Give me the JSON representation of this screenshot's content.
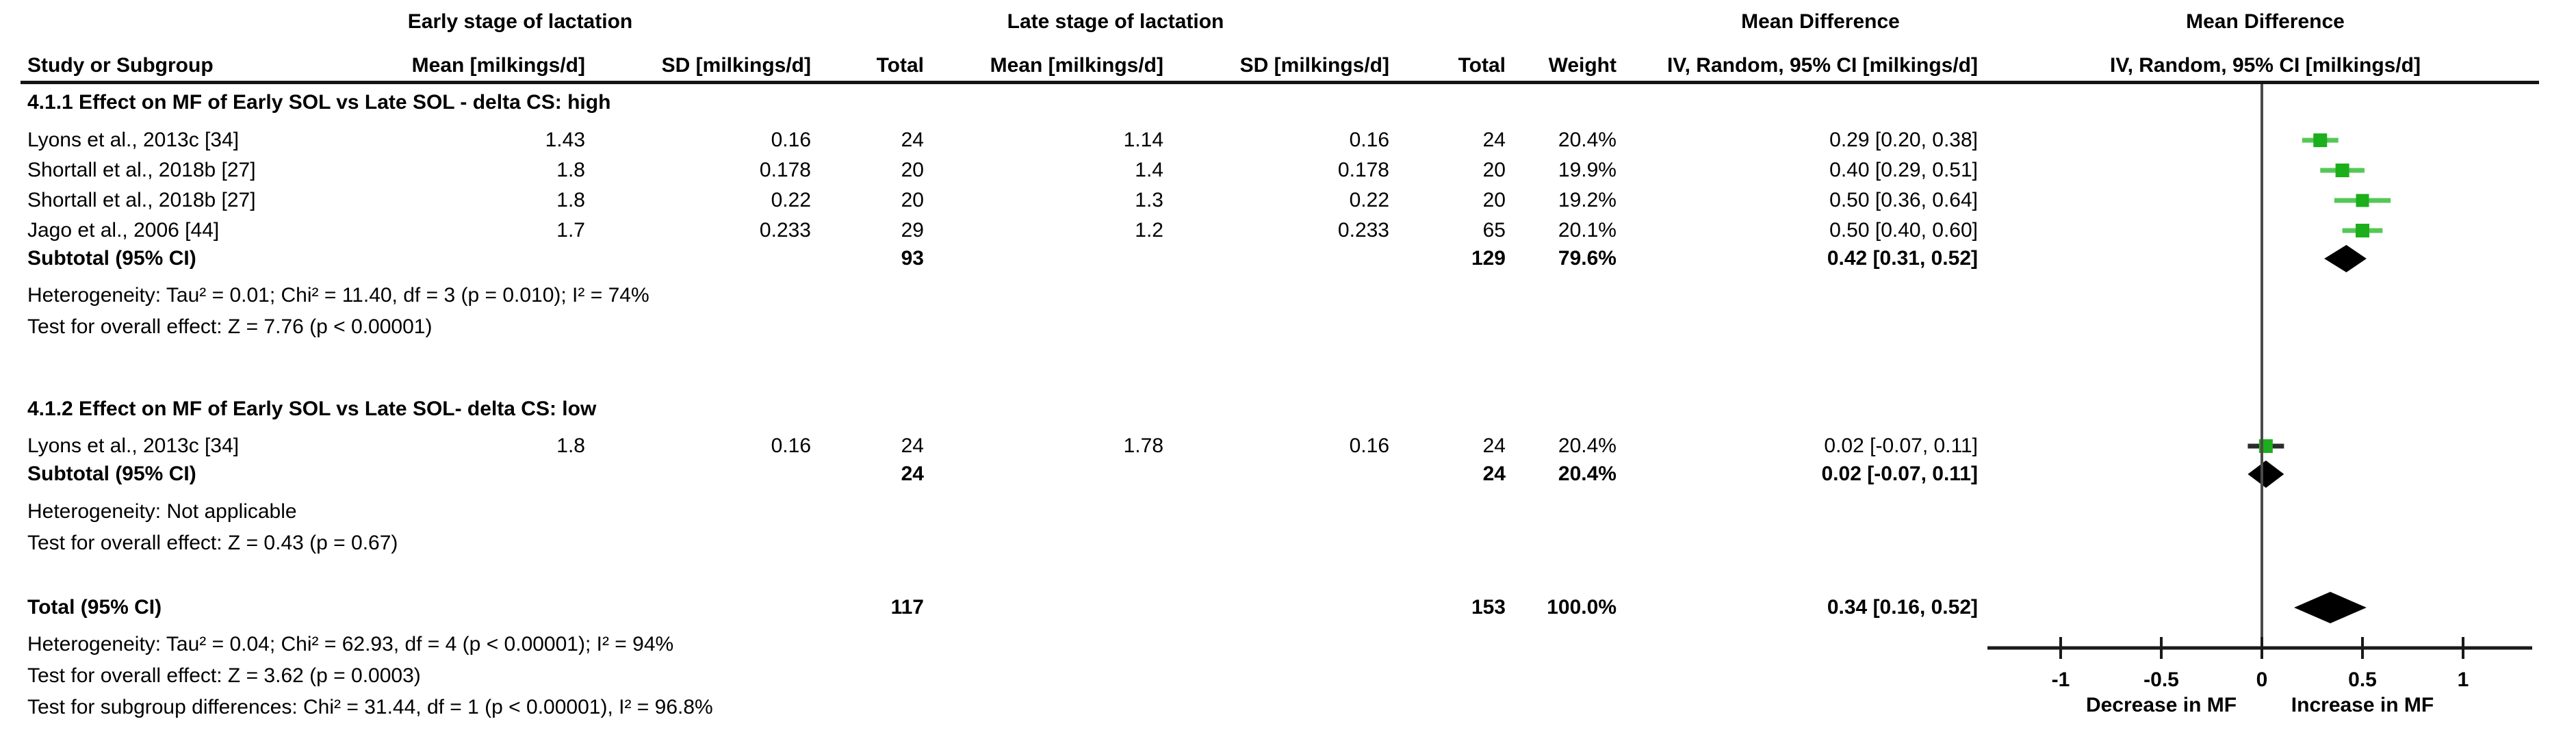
{
  "header": {
    "study_col": "Study or Subgroup",
    "early_group": "Early stage of lactation",
    "late_group": "Late stage of lactation",
    "md_text_group": "Mean Difference",
    "md_plot_group": "Mean Difference",
    "mean_early": "Mean [milkings/d]",
    "sd_early": "SD [milkings/d]",
    "total_early": "Total",
    "mean_late": "Mean [milkings/d]",
    "sd_late": "SD [milkings/d]",
    "total_late": "Total",
    "weight": "Weight",
    "ci_text": "IV, Random, 95% CI [milkings/d]",
    "ci_plot": "IV, Random, 95% CI [milkings/d]"
  },
  "colors": {
    "square": "#1caf1c",
    "ci_line": "#56c756",
    "ci_line_dark": "#2b2b2b",
    "diamond": "#000000",
    "axis": "#1a1a1a",
    "zero_line": "#4a4a4a"
  },
  "chart_data": {
    "type": "forest",
    "effect_measure": "Mean Difference, IV, Random, 95% CI [milkings/d]",
    "x_axis": {
      "min": -1.35,
      "max": 1.35,
      "ticks": [
        -1,
        -0.5,
        0,
        0.5,
        1
      ],
      "tick_labels": [
        "-1",
        "-0.5",
        "0",
        "0.5",
        "1"
      ],
      "left_label": "Decrease in MF",
      "right_label": "Increase in MF"
    },
    "subgroups": [
      {
        "title": "4.1.1 Effect on MF of Early SOL vs Late SOL - delta CS: high",
        "studies": [
          {
            "label": "Lyons et al.,  2013c  [34]",
            "mean_early": "1.43",
            "sd_early": "0.16",
            "total_early": "24",
            "mean_late": "1.14",
            "sd_late": "0.16",
            "total_late": "24",
            "weight": "20.4%",
            "ci_text": "0.29 [0.20, 0.38]",
            "md": 0.29,
            "ci_low": 0.2,
            "ci_high": 0.38
          },
          {
            "label": "Shortall et al., 2018b [27]",
            "mean_early": "1.8",
            "sd_early": "0.178",
            "total_early": "20",
            "mean_late": "1.4",
            "sd_late": "0.178",
            "total_late": "20",
            "weight": "19.9%",
            "ci_text": "0.40 [0.29, 0.51]",
            "md": 0.4,
            "ci_low": 0.29,
            "ci_high": 0.51
          },
          {
            "label": "Shortall et al., 2018b [27]",
            "mean_early": "1.8",
            "sd_early": "0.22",
            "total_early": "20",
            "mean_late": "1.3",
            "sd_late": "0.22",
            "total_late": "20",
            "weight": "19.2%",
            "ci_text": "0.50 [0.36, 0.64]",
            "md": 0.5,
            "ci_low": 0.36,
            "ci_high": 0.64
          },
          {
            "label": "Jago et al., 2006 [44]",
            "mean_early": "1.7",
            "sd_early": "0.233",
            "total_early": "29",
            "mean_late": "1.2",
            "sd_late": "0.233",
            "total_late": "65",
            "weight": "20.1%",
            "ci_text": "0.50 [0.40, 0.60]",
            "md": 0.5,
            "ci_low": 0.4,
            "ci_high": 0.6
          }
        ],
        "subtotal": {
          "label": "Subtotal (95% CI)",
          "total_early": "93",
          "total_late": "129",
          "weight": "79.6%",
          "ci_text": "0.42 [0.31, 0.52]",
          "md": 0.42,
          "ci_low": 0.31,
          "ci_high": 0.52
        },
        "heterogeneity": "Heterogeneity: Tau² = 0.01; Chi² = 11.40, df = 3 (p = 0.010); I² = 74%",
        "overall_effect": "Test for overall effect: Z = 7.76 (p < 0.00001)"
      },
      {
        "title": "4.1.2 Effect on MF of Early SOL vs Late SOL- delta CS: low",
        "studies": [
          {
            "label": "Lyons et al.,  2013c [34]",
            "mean_early": "1.8",
            "sd_early": "0.16",
            "total_early": "24",
            "mean_late": "1.78",
            "sd_late": "0.16",
            "total_late": "24",
            "weight": "20.4%",
            "ci_text": "0.02 [-0.07, 0.11]",
            "md": 0.02,
            "ci_low": -0.07,
            "ci_high": 0.11,
            "dark_line": true
          }
        ],
        "subtotal": {
          "label": "Subtotal (95% CI)",
          "total_early": "24",
          "total_late": "24",
          "weight": "20.4%",
          "ci_text": "0.02 [-0.07, 0.11]",
          "md": 0.02,
          "ci_low": -0.07,
          "ci_high": 0.11
        },
        "heterogeneity": "Heterogeneity: Not applicable",
        "overall_effect": "Test for overall effect: Z = 0.43 (p = 0.67)"
      }
    ],
    "total": {
      "label": "Total (95% CI)",
      "total_early": "117",
      "total_late": "153",
      "weight": "100.0%",
      "ci_text": "0.34 [0.16, 0.52]",
      "md": 0.34,
      "ci_low": 0.16,
      "ci_high": 0.52
    },
    "total_heterogeneity": "Heterogeneity: Tau² = 0.04; Chi² = 62.93, df = 4 (p < 0.00001); I² = 94%",
    "total_overall_effect": "Test for overall effect: Z = 3.62 (p = 0.0003)",
    "subgroup_differences": "Test for subgroup differences: Chi² = 31.44, df = 1 (p < 0.00001), I² = 96.8%"
  }
}
